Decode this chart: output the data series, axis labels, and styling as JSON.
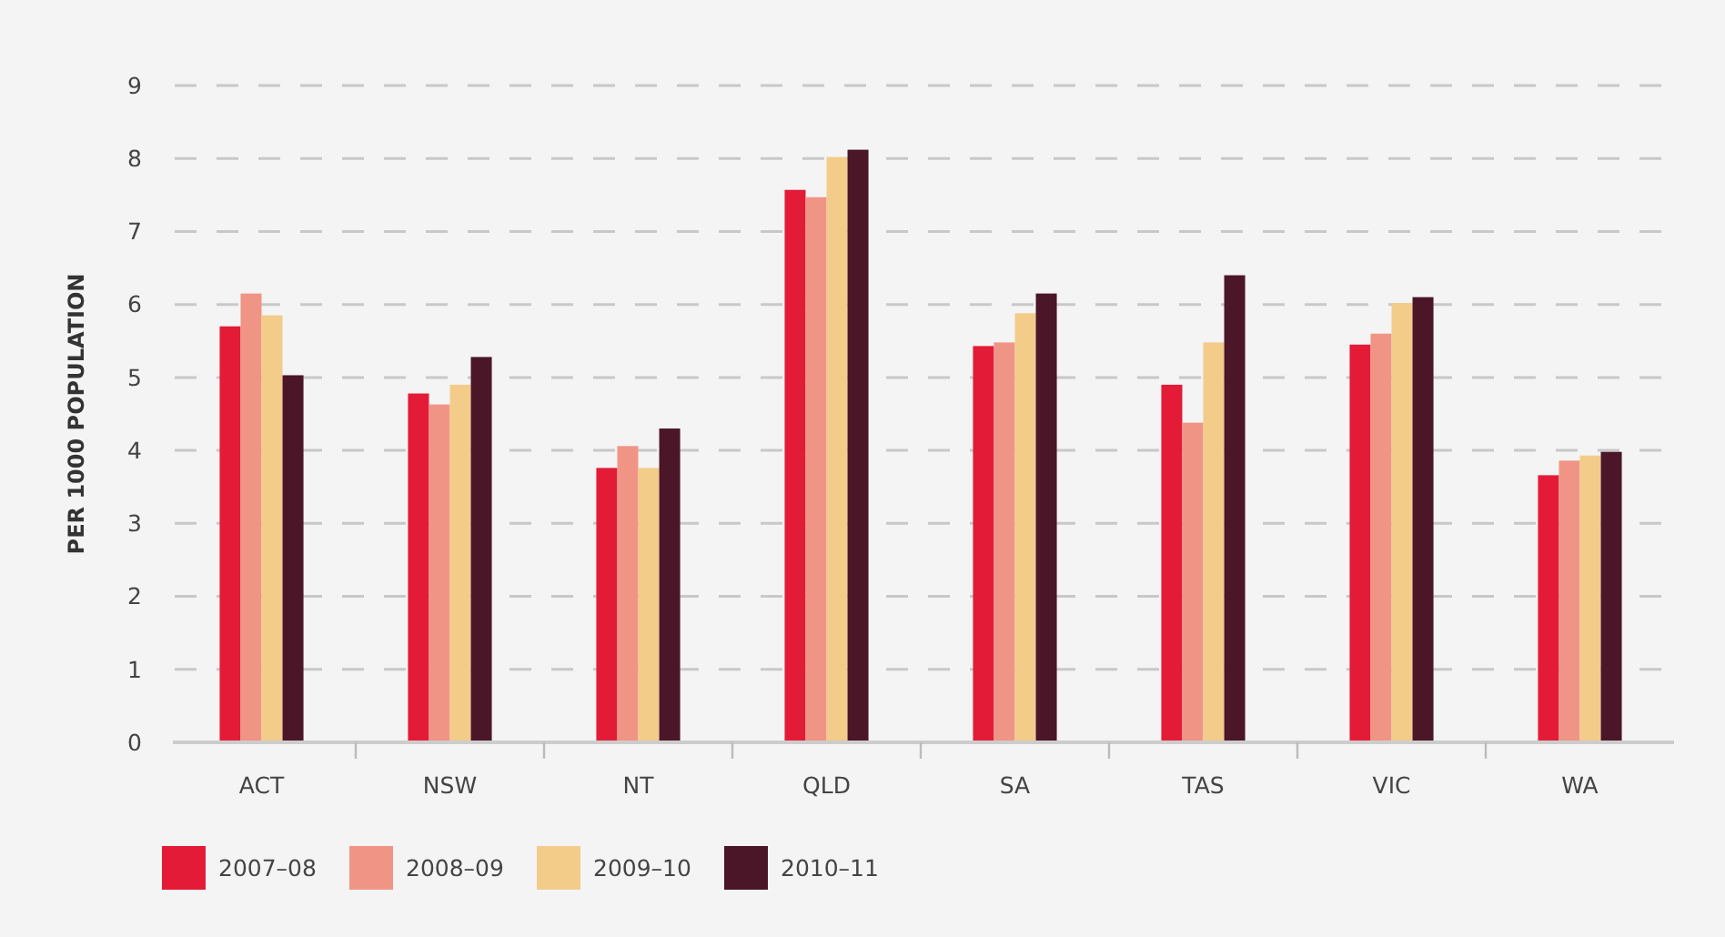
{
  "chart_data": {
    "type": "bar",
    "ylabel": "PER 1000 POPULATION",
    "categories": [
      "ACT",
      "NSW",
      "NT",
      "QLD",
      "SA",
      "TAS",
      "VIC",
      "WA"
    ],
    "series": [
      {
        "name": "2007–08",
        "color": "#e31b37",
        "values": [
          5.7,
          4.78,
          3.76,
          7.57,
          5.43,
          4.9,
          5.45,
          3.66
        ]
      },
      {
        "name": "2008–09",
        "color": "#f09585",
        "values": [
          6.15,
          4.63,
          4.06,
          7.47,
          5.48,
          4.38,
          5.6,
          3.86
        ]
      },
      {
        "name": "2009–10",
        "color": "#f3cc8a",
        "values": [
          5.85,
          4.9,
          3.76,
          8.02,
          5.88,
          5.48,
          6.02,
          3.93
        ]
      },
      {
        "name": "2010–11",
        "color": "#4a1628",
        "values": [
          5.03,
          5.28,
          4.3,
          8.12,
          6.15,
          6.4,
          6.1,
          3.98
        ]
      }
    ],
    "ylim": [
      0,
      9
    ],
    "yticks": [
      0,
      1,
      2,
      3,
      4,
      5,
      6,
      7,
      8,
      9
    ],
    "grid": "y",
    "legend": "bottom"
  }
}
